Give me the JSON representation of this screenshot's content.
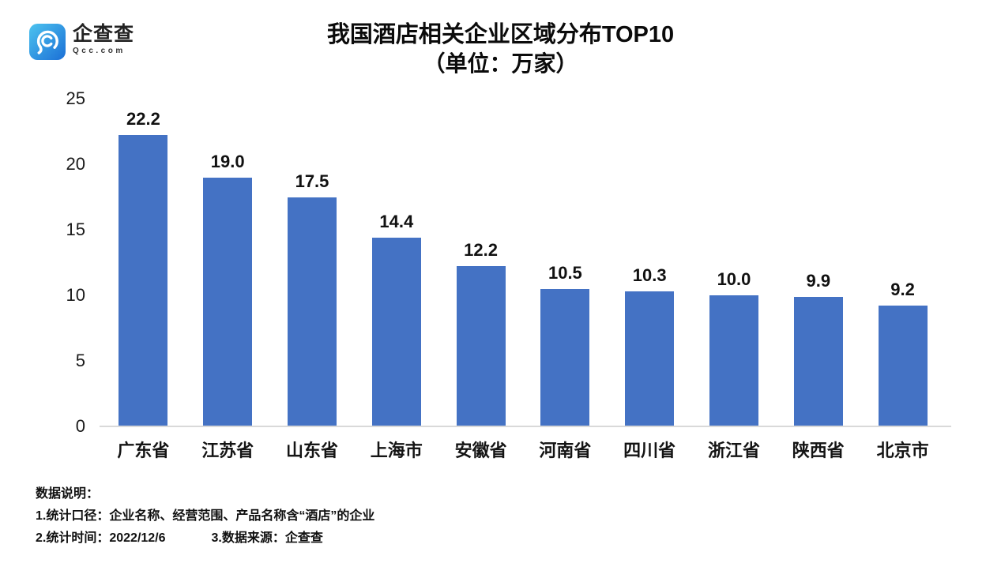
{
  "brand": {
    "name": "企查查",
    "domain": "Qcc.com",
    "icon": "qcc-magnifier-icon",
    "icon_gradient_start": "#4cc3ef",
    "icon_gradient_end": "#1b6fd6"
  },
  "title": {
    "line1": "我国酒店相关企业区域分布TOP10",
    "line2": "（单位：万家）"
  },
  "chart_data": {
    "type": "bar",
    "categories": [
      "广东省",
      "江苏省",
      "山东省",
      "上海市",
      "安徽省",
      "河南省",
      "四川省",
      "浙江省",
      "陕西省",
      "北京市"
    ],
    "values": [
      22.2,
      19.0,
      17.5,
      14.4,
      12.2,
      10.5,
      10.3,
      10.0,
      9.9,
      9.2
    ],
    "value_labels": [
      "22.2",
      "19.0",
      "17.5",
      "14.4",
      "12.2",
      "10.5",
      "10.3",
      "10.0",
      "9.9",
      "9.2"
    ],
    "title": "我国酒店相关企业区域分布TOP10（单位：万家）",
    "xlabel": "",
    "ylabel": "",
    "ylim": [
      0,
      25
    ],
    "yticks": [
      0,
      5,
      10,
      15,
      20,
      25
    ],
    "grid": false,
    "legend": false,
    "bar_color": "#4472c4",
    "axis_line_color": "#d9d9d9"
  },
  "footnote": {
    "heading": "数据说明：",
    "line1": "1.统计口径：企业名称、经营范围、产品名称含“酒店”的企业",
    "line2_left": "2.统计时间：2022/12/6",
    "line2_right": "3.数据来源：企查查"
  },
  "colors": {
    "background": "#ffffff",
    "text": "#141414",
    "bar": "#4472c4",
    "axis_line": "#d9d9d9"
  }
}
